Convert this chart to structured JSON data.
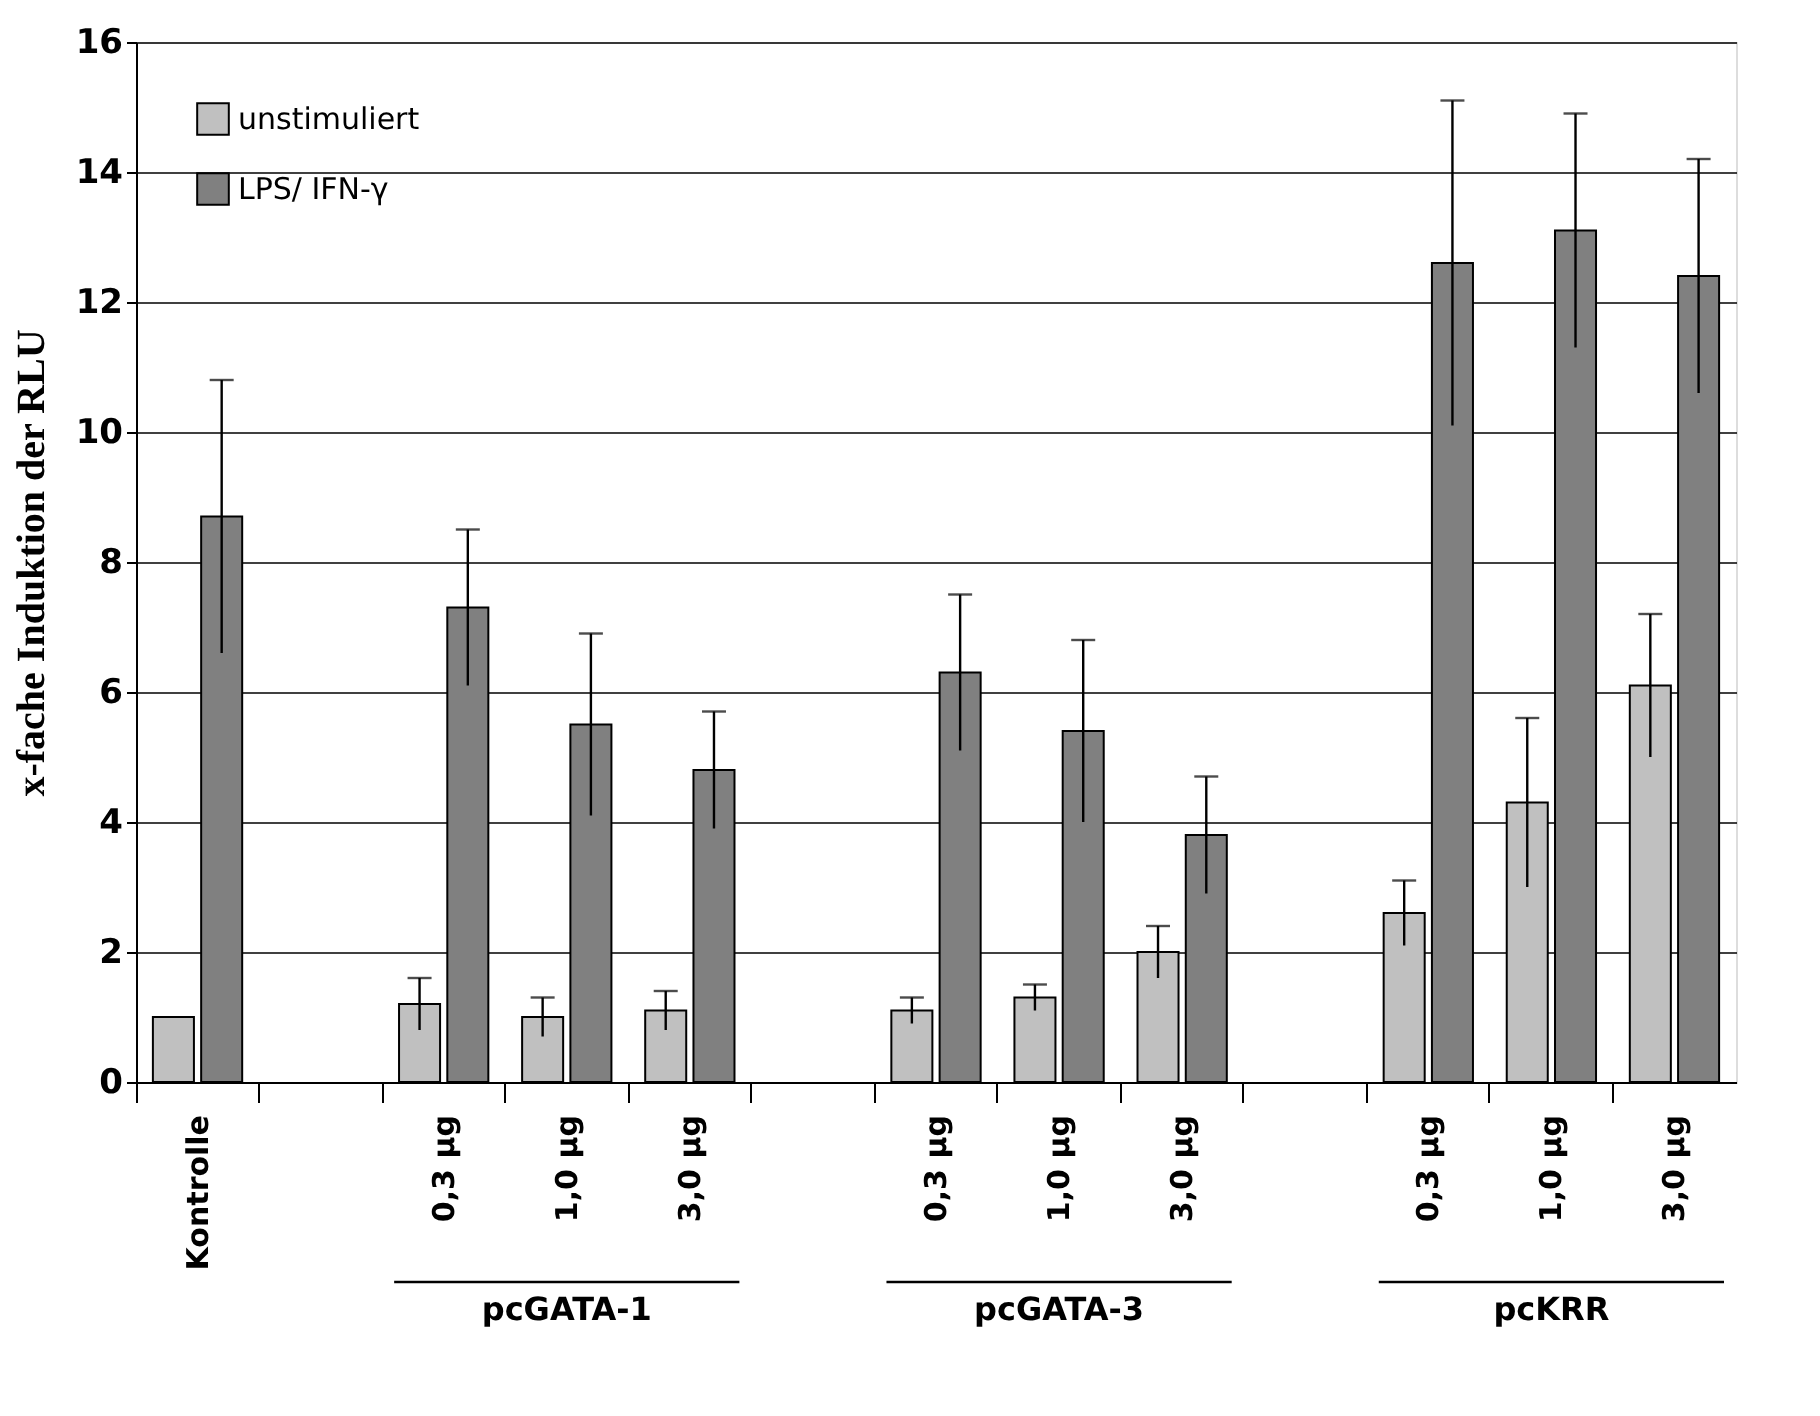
{
  "chart_data": {
    "type": "bar",
    "ylabel": "x-fache Induktion der RLU",
    "categories": [
      "Kontrolle",
      null,
      "0,3 µg",
      "1,0 µg",
      "3,0 µg",
      null,
      "0,3 µg",
      "1,0 µg",
      "3,0 µg",
      null,
      "0,3 µg",
      "1,0 µg",
      "3,0 µg"
    ],
    "series": [
      {
        "name": "unstimuliert",
        "color": "#c0c0c0",
        "values": [
          1.0,
          null,
          1.2,
          1.0,
          1.1,
          null,
          1.1,
          1.3,
          2.0,
          null,
          2.6,
          4.3,
          6.1
        ],
        "errors": [
          null,
          null,
          0.4,
          0.3,
          0.3,
          null,
          0.2,
          0.2,
          0.4,
          null,
          0.5,
          1.3,
          1.1
        ]
      },
      {
        "name": "LPS/ IFN-γ",
        "color": "#808080",
        "values": [
          8.7,
          null,
          7.3,
          5.5,
          4.8,
          null,
          6.3,
          5.4,
          3.8,
          null,
          12.6,
          13.1,
          12.4
        ],
        "errors": [
          2.1,
          null,
          1.2,
          1.4,
          0.9,
          null,
          1.2,
          1.4,
          0.9,
          null,
          2.5,
          1.8,
          1.8
        ]
      }
    ],
    "annotations": [
      "pcGATA-1",
      "pcGATA-3",
      "pcKRR"
    ],
    "ylim": [
      0,
      16
    ],
    "yticks": [
      0,
      2,
      4,
      6,
      8,
      10,
      12,
      14,
      16
    ],
    "grid": "y",
    "legend": "top left"
  }
}
